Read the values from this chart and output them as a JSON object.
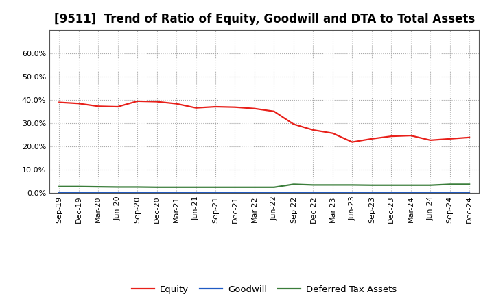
{
  "title": "[9511]  Trend of Ratio of Equity, Goodwill and DTA to Total Assets",
  "x_labels": [
    "Sep-19",
    "Dec-19",
    "Mar-20",
    "Jun-20",
    "Sep-20",
    "Dec-20",
    "Mar-21",
    "Jun-21",
    "Sep-21",
    "Dec-21",
    "Mar-22",
    "Jun-22",
    "Sep-22",
    "Dec-22",
    "Mar-23",
    "Jun-23",
    "Sep-23",
    "Dec-23",
    "Mar-24",
    "Jun-24",
    "Sep-24",
    "Dec-24"
  ],
  "equity": [
    0.389,
    0.384,
    0.372,
    0.37,
    0.394,
    0.392,
    0.383,
    0.365,
    0.37,
    0.368,
    0.362,
    0.35,
    0.295,
    0.27,
    0.256,
    0.218,
    0.232,
    0.243,
    0.246,
    0.226,
    0.232,
    0.238
  ],
  "goodwill": [
    0.0,
    0.0,
    0.0,
    0.0,
    0.0,
    0.0,
    0.0,
    0.0,
    0.0,
    0.0,
    0.0,
    0.0,
    0.0,
    0.0,
    0.0,
    0.0,
    0.0,
    0.0,
    0.0,
    0.0,
    0.0,
    0.0
  ],
  "dta": [
    0.026,
    0.026,
    0.025,
    0.024,
    0.024,
    0.023,
    0.023,
    0.023,
    0.023,
    0.023,
    0.023,
    0.023,
    0.036,
    0.033,
    0.033,
    0.033,
    0.032,
    0.032,
    0.032,
    0.032,
    0.036,
    0.036
  ],
  "equity_color": "#e8201a",
  "goodwill_color": "#1f5bc4",
  "dta_color": "#3a7d3a",
  "ylim": [
    0.0,
    0.7
  ],
  "yticks": [
    0.0,
    0.1,
    0.2,
    0.3,
    0.4,
    0.5,
    0.6
  ],
  "background_color": "#ffffff",
  "plot_bg_color": "#ffffff",
  "grid_color": "#aaaaaa",
  "title_fontsize": 12,
  "tick_fontsize": 8,
  "legend_fontsize": 9.5
}
